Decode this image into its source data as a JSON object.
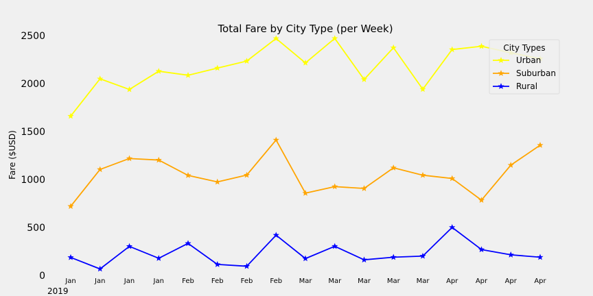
{
  "chart_data": {
    "type": "line",
    "title": "Total Fare by City Type (per Week)",
    "xlabel": "",
    "ylabel": "Fare ($USD)",
    "categories": [
      "Jan",
      "Jan",
      "Jan",
      "Jan",
      "Feb",
      "Feb",
      "Feb",
      "Feb",
      "Mar",
      "Mar",
      "Mar",
      "Mar",
      "Mar",
      "Apr",
      "Apr",
      "Apr",
      "Apr"
    ],
    "year_label": "2019",
    "ylim": [
      0,
      2550
    ],
    "yticks": [
      0,
      500,
      1000,
      1500,
      2000,
      2500
    ],
    "grid": false,
    "legend": {
      "title": "City Types",
      "placement": "top-right"
    },
    "series": [
      {
        "name": "Urban",
        "color": "#ffff00",
        "values": [
          1661,
          2050,
          1939,
          2129,
          2087,
          2162,
          2235,
          2470,
          2216,
          2471,
          2043,
          2374,
          1941,
          2355,
          2389,
          2321,
          2260
        ]
      },
      {
        "name": "Suburban",
        "color": "#ffa500",
        "values": [
          721,
          1105,
          1219,
          1203,
          1043,
          975,
          1046,
          1412,
          858,
          926,
          907,
          1122,
          1045,
          1011,
          785,
          1150,
          1358
        ]
      },
      {
        "name": "Rural",
        "color": "#0000ff",
        "values": [
          188,
          68,
          303,
          179,
          334,
          115,
          96,
          420,
          176,
          304,
          163,
          190,
          202,
          501,
          270,
          215,
          190
        ]
      }
    ]
  }
}
